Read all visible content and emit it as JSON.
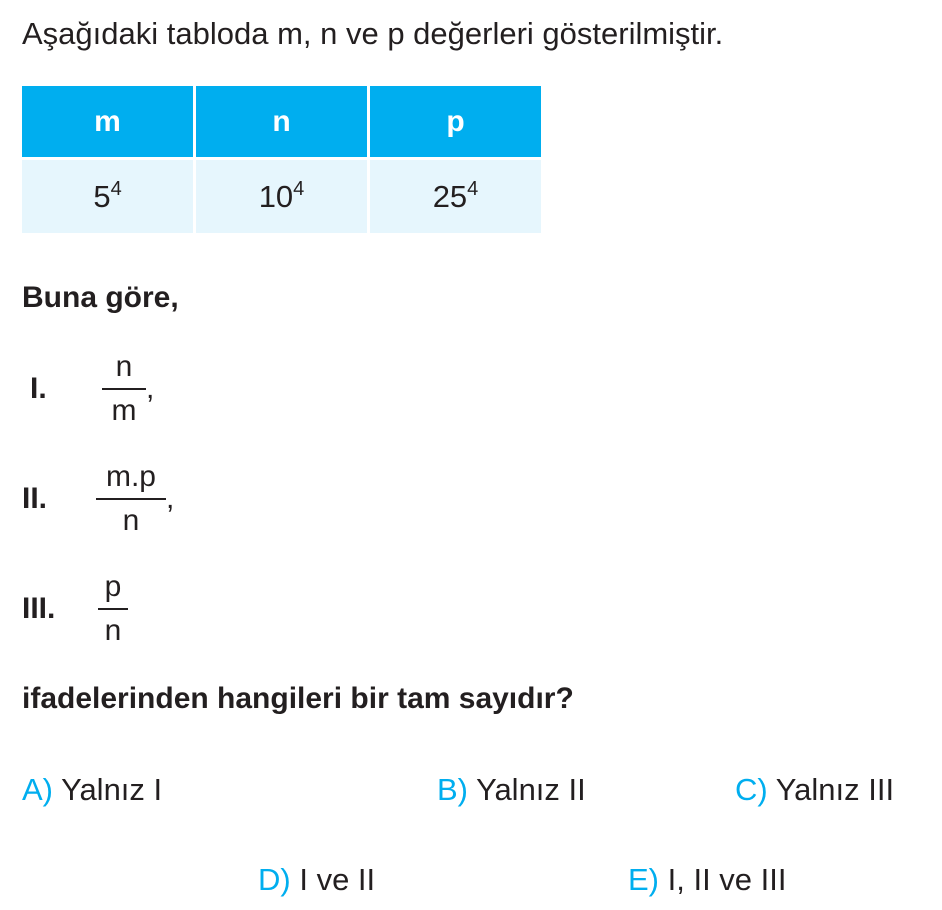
{
  "intro": "Aşağıdaki tabloda m, n ve p değerleri gösterilmiştir.",
  "table": {
    "headers": [
      "m",
      "n",
      "p"
    ],
    "values": [
      {
        "base": "5",
        "exp": "4"
      },
      {
        "base": "10",
        "exp": "4"
      },
      {
        "base": "25",
        "exp": "4"
      }
    ]
  },
  "lead": "Buna göre,",
  "statements": [
    {
      "label": "I.",
      "numerator": "n",
      "denominator": "m",
      "suffix": ","
    },
    {
      "label": "II.",
      "numerator": "m.p",
      "denominator": "n",
      "suffix": ","
    },
    {
      "label": "III.",
      "numerator": "p",
      "denominator": "n",
      "suffix": ""
    }
  ],
  "question": "ifadelerinden hangileri bir tam sayıdır?",
  "options": [
    {
      "letter": "A)",
      "text": "Yalnız I"
    },
    {
      "letter": "B)",
      "text": "Yalnız II"
    },
    {
      "letter": "C)",
      "text": "Yalnız III"
    },
    {
      "letter": "D)",
      "text": "I ve II"
    },
    {
      "letter": "E)",
      "text": "I, II ve III"
    }
  ],
  "colors": {
    "accent": "#00AEEF",
    "table_header": "#00AEEF",
    "table_body": "#E6F6FD",
    "text": "#231F20"
  }
}
